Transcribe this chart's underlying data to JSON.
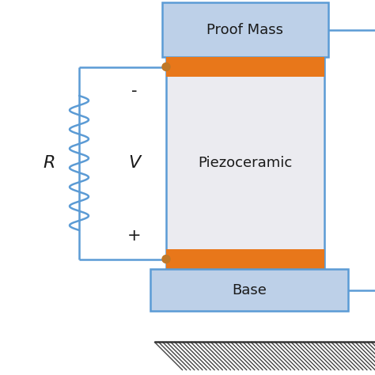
{
  "bg_color": "#ffffff",
  "circuit_color": "#5b9bd5",
  "piezo_fill": "#ebebf0",
  "piezo_border": "#5b9bd5",
  "orange_fill": "#e8771a",
  "proof_mass_fill": "#bdd0e8",
  "proof_mass_border": "#5b9bd5",
  "base_fill": "#bdd0e8",
  "base_border": "#5b9bd5",
  "dot_color": "#c07828",
  "text_color": "#1a1a1a",
  "label_R": "R",
  "label_V": "V",
  "label_piezo": "Piezoceramic",
  "label_proof": "Proof Mass",
  "label_base": "Base",
  "label_minus": "-",
  "label_plus": "+"
}
